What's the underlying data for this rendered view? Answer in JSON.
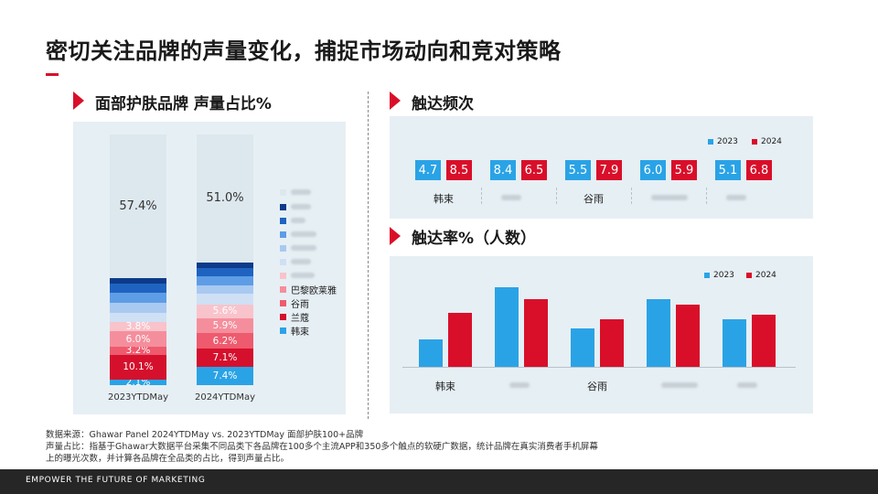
{
  "title": "密切关注品牌的声量变化，捕捉市场动向和竞对策略",
  "colors": {
    "accent": "#d90f2a",
    "blue2023": "#2aa3e6",
    "red2024": "#d90f2a"
  },
  "left_section": {
    "title": "面部护肤品牌 声量占比%"
  },
  "freq_section": {
    "title": "触达频次"
  },
  "rate_section": {
    "title": "触达率%（人数）"
  },
  "chart_data": [
    {
      "type": "bar",
      "stacked": true,
      "title": "面部护肤品牌 声量占比%",
      "categories": [
        "2023YTDMay",
        "2024YTDMay"
      ],
      "ylim": [
        0,
        100
      ],
      "series": [
        {
          "name": "韩束",
          "color": "#2aa3e6",
          "values": [
            2.1,
            7.4
          ],
          "labels": [
            "2.1%",
            "7.4%"
          ]
        },
        {
          "name": "兰蔻",
          "color": "#d5102c",
          "values": [
            10.1,
            7.1
          ],
          "labels": [
            "10.1%",
            "7.1%"
          ]
        },
        {
          "name": "谷雨",
          "color": "#ee5a6e",
          "values": [
            3.2,
            6.2
          ],
          "labels": [
            "3.2%",
            "6.2%"
          ]
        },
        {
          "name": "巴黎欧莱雅",
          "color": "#f58e9c",
          "values": [
            6.0,
            5.9
          ],
          "labels": [
            "6.0%",
            "5.9%"
          ]
        },
        {
          "name": "",
          "color": "#f9c3cb",
          "values": [
            3.8,
            5.6
          ],
          "labels": [
            "3.8%",
            "5.6%"
          ]
        },
        {
          "name": "",
          "color": "#cfe0f5",
          "values": [
            3.5,
            4.2
          ],
          "labels": [
            "",
            ""
          ]
        },
        {
          "name": "",
          "color": "#a9c9f0",
          "values": [
            4.0,
            3.5
          ],
          "labels": [
            "",
            ""
          ]
        },
        {
          "name": "",
          "color": "#5e9de6",
          "values": [
            4.2,
            3.6
          ],
          "labels": [
            "",
            ""
          ]
        },
        {
          "name": "",
          "color": "#1f63c0",
          "values": [
            3.5,
            3.3
          ],
          "labels": [
            "",
            ""
          ]
        },
        {
          "name": "",
          "color": "#0d3a8a",
          "values": [
            2.2,
            2.2
          ],
          "labels": [
            "",
            ""
          ]
        },
        {
          "name": "",
          "color": "#dde8ee",
          "values": [
            57.4,
            51.0
          ],
          "labels": [
            "57.4%",
            "51.0%"
          ]
        }
      ]
    },
    {
      "type": "table",
      "title": "触达频次",
      "legend": [
        "2023",
        "2024"
      ],
      "brands": [
        "韩束",
        "",
        "谷雨",
        "",
        ""
      ],
      "values_2023": [
        "4.7",
        "8.4",
        "5.5",
        "6.0",
        "5.1"
      ],
      "values_2024": [
        "8.5",
        "6.5",
        "7.9",
        "5.9",
        "6.8"
      ]
    },
    {
      "type": "bar",
      "title": "触达率%（人数）",
      "legend": [
        "2023",
        "2024"
      ],
      "categories": [
        "韩束",
        "",
        "谷雨",
        "",
        ""
      ],
      "ylim": [
        0,
        100
      ],
      "series": [
        {
          "name": "2023",
          "values": [
            35,
            100,
            48,
            85,
            60
          ]
        },
        {
          "name": "2024",
          "values": [
            68,
            85,
            60,
            78,
            65
          ]
        }
      ]
    }
  ],
  "footnote": {
    "line1": "数据来源：Ghawar Panel 2024YTDMay vs. 2023YTDMay 面部护肤100+品牌",
    "line2": "声量占比：指基于Ghawar大数据平台采集不同品类下各品牌在100多个主流APP和350多个触点的软硬广数据，统计品牌在真实消费者手机屏幕",
    "line3": "上的曝光次数，并计算各品牌在全品类的占比，得到声量占比。"
  },
  "footer": {
    "tagline": "EMPOWER THE FUTURE OF MARKETING"
  }
}
